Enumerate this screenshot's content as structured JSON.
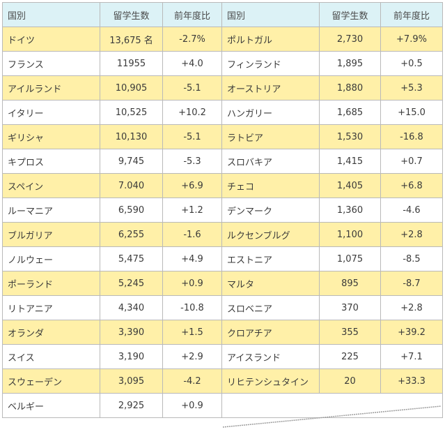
{
  "headers": {
    "country": "国別",
    "students": "留学生数",
    "yoy": "前年度比"
  },
  "left_rows": [
    {
      "country": "ドイツ",
      "students": "13,675 名",
      "yoy": "-2.7%"
    },
    {
      "country": "フランス",
      "students": "11955",
      "yoy": "+4.0"
    },
    {
      "country": "アイルランド",
      "students": "10,905",
      "yoy": "-5.1"
    },
    {
      "country": "イタリー",
      "students": "10,525",
      "yoy": "+10.2"
    },
    {
      "country": "ギリシャ",
      "students": "10,130",
      "yoy": "-5.1"
    },
    {
      "country": "キプロス",
      "students": "9,745",
      "yoy": "-5.3"
    },
    {
      "country": "スペイン",
      "students": "7.040",
      "yoy": "+6.9"
    },
    {
      "country": "ルーマニア",
      "students": "6,590",
      "yoy": "+1.2"
    },
    {
      "country": "ブルガリア",
      "students": "6,255",
      "yoy": "-1.6"
    },
    {
      "country": "ノルウェー",
      "students": "5,475",
      "yoy": "+4.9"
    },
    {
      "country": "ポーランド",
      "students": "5,245",
      "yoy": "+0.9"
    },
    {
      "country": "リトアニア",
      "students": "4,340",
      "yoy": "-10.8"
    },
    {
      "country": "オランダ",
      "students": "3,390",
      "yoy": "+1.5"
    },
    {
      "country": "スイス",
      "students": "3,190",
      "yoy": "+2.9"
    },
    {
      "country": "スウェーデン",
      "students": "3,095",
      "yoy": "-4.2"
    },
    {
      "country": "ベルギー",
      "students": "2,925",
      "yoy": "+0.9"
    }
  ],
  "right_rows": [
    {
      "country": "ポルトガル",
      "students": "2,730",
      "yoy": "+7.9%"
    },
    {
      "country": "フィンランド",
      "students": "1,895",
      "yoy": "+0.5"
    },
    {
      "country": "オーストリア",
      "students": "1,880",
      "yoy": "+5.3"
    },
    {
      "country": "ハンガリー",
      "students": "1,685",
      "yoy": "+15.0"
    },
    {
      "country": "ラトビア",
      "students": "1,530",
      "yoy": "-16.8"
    },
    {
      "country": "スロバキア",
      "students": "1,415",
      "yoy": "+0.7"
    },
    {
      "country": "チェコ",
      "students": "1,405",
      "yoy": "+6.8"
    },
    {
      "country": "デンマーク",
      "students": "1,360",
      "yoy": "-4.6"
    },
    {
      "country": "ルクセンブルグ",
      "students": "1,100",
      "yoy": "+2.8"
    },
    {
      "country": "エストニア",
      "students": "1,075",
      "yoy": "-8.5"
    },
    {
      "country": "マルタ",
      "students": "895",
      "yoy": "-8.7"
    },
    {
      "country": "スロベニア",
      "students": "370",
      "yoy": "+2.8"
    },
    {
      "country": "クロアチア",
      "students": "355",
      "yoy": "+39.2"
    },
    {
      "country": "アイスランド",
      "students": "225",
      "yoy": "+7.1"
    },
    {
      "country": "リヒテンシュタイン",
      "students": "20",
      "yoy": "+33.3"
    }
  ],
  "colors": {
    "header_bg": "#dcf2f6",
    "highlight_row": "#fff0a8",
    "border": "#b9b9b9",
    "text": "#3a3a3a"
  }
}
